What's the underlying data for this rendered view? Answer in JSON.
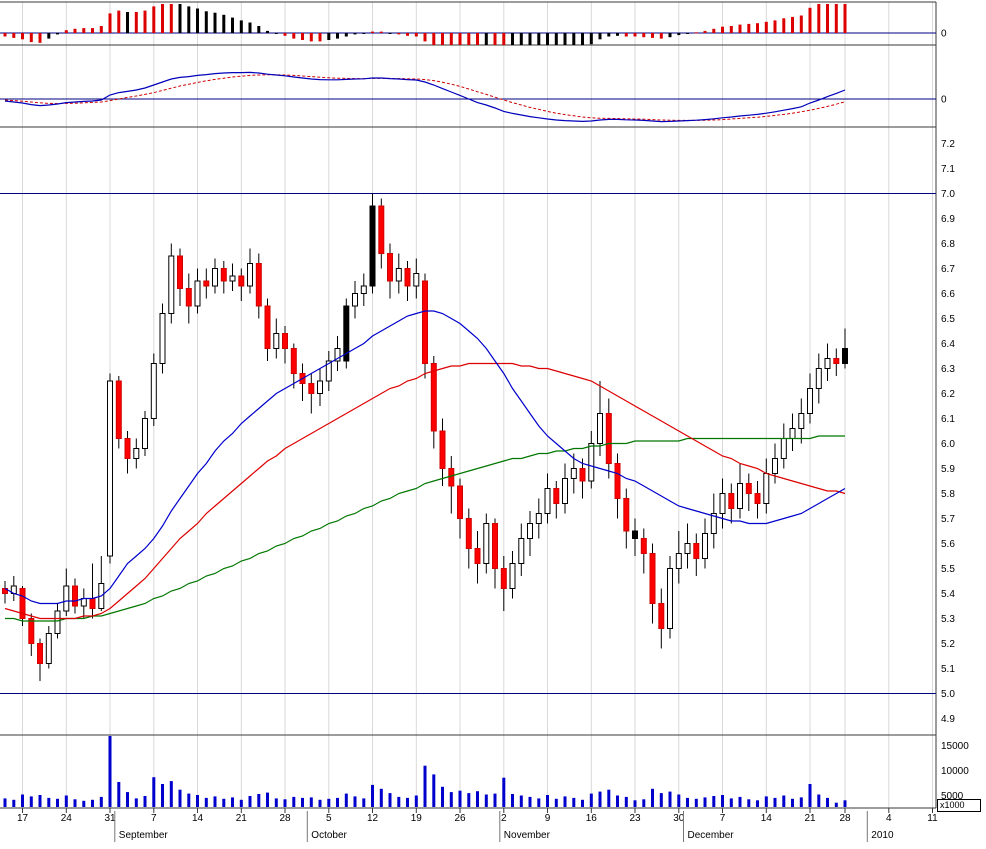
{
  "right_axis": {
    "indicator_zero_labels": [
      "0",
      "0"
    ],
    "price_labels": [
      "7.2",
      "7.1",
      "7.0",
      "6.9",
      "6.8",
      "6.7",
      "6.6",
      "6.5",
      "6.4",
      "6.3",
      "6.2",
      "6.1",
      "6.0",
      "5.9",
      "5.8",
      "5.7",
      "5.6",
      "5.5",
      "5.4",
      "5.3",
      "5.2",
      "5.1",
      "5.0",
      "4.9"
    ],
    "volume_labels": [
      "15000",
      "10000",
      "5000"
    ],
    "volume_unit": "x1000"
  },
  "x_axis": {
    "week_tick_labels": [
      "17",
      "24",
      "31",
      "7",
      "14",
      "21",
      "28",
      "5",
      "12",
      "19",
      "26",
      "2",
      "9",
      "16",
      "23",
      "30",
      "7",
      "14",
      "21",
      "28",
      "4",
      "11"
    ],
    "week_tick_days": [
      2,
      7,
      12,
      17,
      22,
      27,
      32,
      37,
      42,
      47,
      52,
      57,
      62,
      67,
      72,
      77,
      82,
      87,
      92,
      96,
      101,
      106
    ],
    "month_labels": [
      "September",
      "October",
      "November",
      "December",
      "2010"
    ],
    "month_days": [
      13,
      35,
      57,
      78,
      99
    ]
  },
  "chart_data": {
    "type": "candlestick",
    "description": "Daily OHLC price chart Aug-Dec 2009 with 3 moving averages, MACD panel, MACD histogram panel and volume panel",
    "price_axis_range": [
      4.85,
      7.25
    ],
    "hlines": [
      7.0,
      5.0
    ],
    "volume_axis_ticks": [
      5000,
      10000,
      15000
    ],
    "open": [
      5.42,
      5.4,
      5.42,
      5.3,
      5.2,
      5.12,
      5.24,
      5.33,
      5.43,
      5.35,
      5.38,
      5.34,
      5.55,
      6.25,
      6.02,
      5.94,
      5.98,
      6.1,
      6.32,
      6.52,
      6.75,
      6.62,
      6.55,
      6.65,
      6.63,
      6.7,
      6.65,
      6.67,
      6.63,
      6.72,
      6.55,
      6.38,
      6.44,
      6.38,
      6.28,
      6.24,
      6.2,
      6.25,
      6.33,
      6.33,
      6.55,
      6.6,
      6.63,
      6.95,
      6.76,
      6.65,
      6.7,
      6.63,
      6.65,
      6.32,
      6.05,
      5.9,
      5.83,
      5.7,
      5.58,
      5.52,
      5.68,
      5.5,
      5.42,
      5.52,
      5.62,
      5.68,
      5.72,
      5.82,
      5.76,
      5.86,
      5.9,
      5.85,
      6.0,
      6.12,
      5.92,
      5.78,
      5.65,
      5.62,
      5.56,
      5.36,
      5.26,
      5.5,
      5.56,
      5.6,
      5.54,
      5.64,
      5.72,
      5.8,
      5.74,
      5.84,
      5.8,
      5.76,
      5.88,
      5.94,
      6.02,
      6.06,
      6.12,
      6.22,
      6.3,
      6.34,
      6.32
    ],
    "close": [
      5.4,
      5.43,
      5.3,
      5.2,
      5.12,
      5.24,
      5.33,
      5.43,
      5.35,
      5.38,
      5.34,
      5.44,
      6.25,
      6.02,
      5.94,
      5.98,
      6.1,
      6.32,
      6.52,
      6.75,
      6.62,
      6.55,
      6.65,
      6.63,
      6.7,
      6.65,
      6.67,
      6.63,
      6.72,
      6.55,
      6.38,
      6.44,
      6.38,
      6.28,
      6.24,
      6.2,
      6.25,
      6.33,
      6.38,
      6.55,
      6.6,
      6.63,
      6.95,
      6.76,
      6.65,
      6.7,
      6.63,
      6.68,
      6.32,
      6.05,
      5.9,
      5.83,
      5.7,
      5.58,
      5.52,
      5.68,
      5.5,
      5.42,
      5.52,
      5.62,
      5.68,
      5.72,
      5.82,
      5.76,
      5.86,
      5.9,
      5.85,
      6.0,
      6.12,
      5.92,
      5.78,
      5.65,
      5.62,
      5.56,
      5.36,
      5.26,
      5.5,
      5.56,
      5.6,
      5.54,
      5.64,
      5.72,
      5.8,
      5.74,
      5.84,
      5.8,
      5.76,
      5.88,
      5.94,
      6.02,
      6.06,
      6.12,
      6.22,
      6.3,
      6.34,
      6.32,
      6.38
    ],
    "high": [
      5.45,
      5.47,
      5.43,
      5.32,
      5.22,
      5.27,
      5.36,
      5.5,
      5.46,
      5.42,
      5.52,
      5.55,
      6.28,
      6.27,
      6.05,
      6.02,
      6.13,
      6.36,
      6.56,
      6.8,
      6.78,
      6.68,
      6.7,
      6.7,
      6.74,
      6.73,
      6.72,
      6.7,
      6.78,
      6.76,
      6.58,
      6.5,
      6.47,
      6.4,
      6.32,
      6.28,
      6.3,
      6.37,
      6.43,
      6.58,
      6.65,
      6.68,
      7.0,
      6.98,
      6.8,
      6.76,
      6.73,
      6.74,
      6.68,
      6.35,
      6.1,
      5.95,
      5.86,
      5.74,
      5.65,
      5.72,
      5.7,
      5.55,
      5.57,
      5.68,
      5.73,
      5.78,
      5.88,
      5.85,
      5.92,
      5.96,
      5.94,
      6.05,
      6.25,
      6.18,
      5.96,
      5.82,
      5.7,
      5.66,
      5.6,
      5.42,
      5.55,
      5.65,
      5.68,
      5.64,
      5.7,
      5.8,
      5.86,
      5.84,
      5.92,
      5.88,
      5.85,
      5.94,
      6.0,
      6.08,
      6.12,
      6.18,
      6.28,
      6.36,
      6.4,
      6.38,
      6.46
    ],
    "low": [
      5.36,
      5.37,
      5.27,
      5.15,
      5.05,
      5.1,
      5.22,
      5.31,
      5.32,
      5.3,
      5.3,
      5.33,
      5.52,
      5.98,
      5.88,
      5.9,
      5.95,
      6.07,
      6.28,
      6.48,
      6.55,
      6.48,
      6.52,
      6.58,
      6.6,
      6.6,
      6.61,
      6.57,
      6.6,
      6.5,
      6.33,
      6.34,
      6.32,
      6.22,
      6.17,
      6.12,
      6.15,
      6.21,
      6.29,
      6.3,
      6.5,
      6.55,
      6.6,
      6.7,
      6.58,
      6.6,
      6.57,
      6.58,
      6.26,
      5.98,
      5.83,
      5.72,
      5.62,
      5.5,
      5.44,
      5.48,
      5.42,
      5.33,
      5.38,
      5.47,
      5.55,
      5.62,
      5.68,
      5.7,
      5.72,
      5.8,
      5.78,
      5.82,
      5.95,
      5.86,
      5.7,
      5.58,
      5.55,
      5.48,
      5.28,
      5.18,
      5.22,
      5.44,
      5.5,
      5.47,
      5.5,
      5.58,
      5.66,
      5.68,
      5.7,
      5.73,
      5.7,
      5.72,
      5.84,
      5.9,
      5.97,
      6.0,
      6.08,
      6.16,
      6.25,
      6.27,
      6.3
    ],
    "candle_color": [
      "r",
      "w",
      "r",
      "r",
      "r",
      "w",
      "w",
      "w",
      "r",
      "w",
      "r",
      "w",
      "w",
      "r",
      "r",
      "w",
      "w",
      "w",
      "w",
      "w",
      "r",
      "r",
      "w",
      "r",
      "w",
      "r",
      "w",
      "r",
      "w",
      "r",
      "r",
      "w",
      "r",
      "r",
      "r",
      "r",
      "w",
      "w",
      "w",
      "k",
      "w",
      "w",
      "k",
      "r",
      "r",
      "w",
      "r",
      "w",
      "r",
      "r",
      "r",
      "r",
      "r",
      "r",
      "r",
      "w",
      "r",
      "r",
      "w",
      "w",
      "w",
      "w",
      "w",
      "r",
      "w",
      "w",
      "r",
      "w",
      "w",
      "r",
      "r",
      "r",
      "k",
      "r",
      "r",
      "r",
      "w",
      "w",
      "w",
      "r",
      "w",
      "w",
      "w",
      "r",
      "w",
      "r",
      "r",
      "w",
      "w",
      "w",
      "w",
      "w",
      "w",
      "w",
      "w",
      "r",
      "k"
    ],
    "volume": [
      1800,
      1500,
      2600,
      2200,
      2500,
      1900,
      1700,
      2400,
      1600,
      1300,
      1500,
      2100,
      15500,
      5200,
      3100,
      1800,
      2300,
      6200,
      4800,
      5400,
      3600,
      2800,
      2500,
      1900,
      2200,
      1700,
      2000,
      1500,
      2300,
      2700,
      3000,
      1800,
      1600,
      2100,
      1900,
      2000,
      1500,
      1700,
      1900,
      2800,
      2200,
      1800,
      4600,
      3800,
      2900,
      2100,
      1900,
      2400,
      8600,
      6800,
      4200,
      3100,
      3400,
      2900,
      3300,
      2600,
      2800,
      6100,
      2700,
      2400,
      2100,
      1800,
      2500,
      1700,
      2200,
      1900,
      1500,
      2800,
      3200,
      3600,
      2400,
      2100,
      1400,
      1600,
      3800,
      2900,
      3200,
      2600,
      1900,
      1700,
      2000,
      2300,
      2500,
      1800,
      2100,
      1600,
      1400,
      2200,
      1900,
      2400,
      1700,
      2000,
      4800,
      2600,
      1900,
      900,
      1400
    ],
    "ma_fast_blue": [
      5.42,
      5.4,
      5.39,
      5.37,
      5.36,
      5.36,
      5.36,
      5.37,
      5.37,
      5.38,
      5.38,
      5.39,
      5.42,
      5.47,
      5.52,
      5.55,
      5.58,
      5.62,
      5.67,
      5.73,
      5.78,
      5.83,
      5.88,
      5.92,
      5.97,
      6.01,
      6.04,
      6.08,
      6.11,
      6.14,
      6.17,
      6.2,
      6.22,
      6.24,
      6.26,
      6.28,
      6.3,
      6.32,
      6.34,
      6.36,
      6.38,
      6.4,
      6.43,
      6.45,
      6.47,
      6.49,
      6.51,
      6.52,
      6.53,
      6.53,
      6.52,
      6.5,
      6.48,
      6.45,
      6.42,
      6.38,
      6.33,
      6.28,
      6.22,
      6.17,
      6.12,
      6.07,
      6.03,
      6.0,
      5.97,
      5.94,
      5.92,
      5.91,
      5.9,
      5.89,
      5.88,
      5.86,
      5.85,
      5.83,
      5.81,
      5.79,
      5.77,
      5.75,
      5.74,
      5.73,
      5.72,
      5.71,
      5.7,
      5.69,
      5.69,
      5.68,
      5.68,
      5.68,
      5.69,
      5.7,
      5.71,
      5.72,
      5.74,
      5.76,
      5.78,
      5.8,
      5.82
    ],
    "ma_mid_red": [
      5.34,
      5.33,
      5.32,
      5.31,
      5.3,
      5.3,
      5.3,
      5.3,
      5.3,
      5.31,
      5.31,
      5.32,
      5.34,
      5.37,
      5.4,
      5.43,
      5.46,
      5.5,
      5.54,
      5.58,
      5.62,
      5.65,
      5.68,
      5.72,
      5.75,
      5.78,
      5.81,
      5.84,
      5.87,
      5.9,
      5.93,
      5.95,
      5.98,
      6.0,
      6.02,
      6.04,
      6.06,
      6.08,
      6.1,
      6.12,
      6.14,
      6.16,
      6.18,
      6.2,
      6.22,
      6.23,
      6.25,
      6.26,
      6.28,
      6.29,
      6.3,
      6.31,
      6.31,
      6.32,
      6.32,
      6.32,
      6.32,
      6.32,
      6.32,
      6.31,
      6.31,
      6.3,
      6.3,
      6.29,
      6.28,
      6.27,
      6.26,
      6.25,
      6.23,
      6.21,
      6.19,
      6.17,
      6.15,
      6.13,
      6.11,
      6.09,
      6.07,
      6.05,
      6.03,
      6.01,
      5.99,
      5.97,
      5.95,
      5.94,
      5.92,
      5.91,
      5.9,
      5.88,
      5.87,
      5.86,
      5.85,
      5.84,
      5.83,
      5.82,
      5.81,
      5.81,
      5.8
    ],
    "ma_slow_green": [
      5.3,
      5.3,
      5.29,
      5.29,
      5.29,
      5.29,
      5.29,
      5.3,
      5.3,
      5.3,
      5.31,
      5.31,
      5.32,
      5.33,
      5.34,
      5.35,
      5.36,
      5.38,
      5.39,
      5.41,
      5.42,
      5.44,
      5.45,
      5.47,
      5.48,
      5.5,
      5.51,
      5.53,
      5.54,
      5.56,
      5.57,
      5.59,
      5.6,
      5.62,
      5.63,
      5.65,
      5.66,
      5.68,
      5.69,
      5.71,
      5.72,
      5.74,
      5.75,
      5.77,
      5.78,
      5.8,
      5.81,
      5.82,
      5.84,
      5.85,
      5.86,
      5.87,
      5.88,
      5.89,
      5.9,
      5.91,
      5.92,
      5.93,
      5.94,
      5.94,
      5.95,
      5.96,
      5.96,
      5.97,
      5.97,
      5.98,
      5.98,
      5.99,
      5.99,
      6.0,
      6.0,
      6.0,
      6.01,
      6.01,
      6.01,
      6.01,
      6.01,
      6.01,
      6.02,
      6.02,
      6.02,
      6.02,
      6.02,
      6.02,
      6.02,
      6.02,
      6.02,
      6.02,
      6.02,
      6.02,
      6.02,
      6.02,
      6.02,
      6.03,
      6.03,
      6.03,
      6.03
    ],
    "macd": [
      -0.01,
      -0.015,
      -0.02,
      -0.028,
      -0.033,
      -0.03,
      -0.025,
      -0.018,
      -0.015,
      -0.012,
      -0.01,
      -0.005,
      0.02,
      0.032,
      0.038,
      0.045,
      0.055,
      0.07,
      0.085,
      0.1,
      0.108,
      0.112,
      0.118,
      0.122,
      0.127,
      0.13,
      0.132,
      0.132,
      0.133,
      0.13,
      0.124,
      0.12,
      0.116,
      0.11,
      0.105,
      0.1,
      0.097,
      0.096,
      0.096,
      0.098,
      0.1,
      0.101,
      0.105,
      0.105,
      0.102,
      0.1,
      0.097,
      0.095,
      0.085,
      0.07,
      0.052,
      0.035,
      0.018,
      0.0,
      -0.018,
      -0.03,
      -0.045,
      -0.062,
      -0.072,
      -0.08,
      -0.088,
      -0.094,
      -0.1,
      -0.105,
      -0.108,
      -0.11,
      -0.112,
      -0.11,
      -0.105,
      -0.102,
      -0.102,
      -0.104,
      -0.105,
      -0.107,
      -0.11,
      -0.113,
      -0.112,
      -0.11,
      -0.108,
      -0.106,
      -0.103,
      -0.099,
      -0.094,
      -0.09,
      -0.085,
      -0.081,
      -0.077,
      -0.071,
      -0.064,
      -0.056,
      -0.048,
      -0.039,
      -0.02,
      -0.005,
      0.012,
      0.028,
      0.045
    ],
    "macd_signal": [
      -0.005,
      -0.008,
      -0.011,
      -0.015,
      -0.019,
      -0.022,
      -0.023,
      -0.022,
      -0.021,
      -0.019,
      -0.017,
      -0.015,
      -0.008,
      0.0,
      0.008,
      0.015,
      0.023,
      0.032,
      0.043,
      0.054,
      0.065,
      0.074,
      0.083,
      0.091,
      0.098,
      0.104,
      0.11,
      0.114,
      0.118,
      0.12,
      0.121,
      0.121,
      0.12,
      0.118,
      0.115,
      0.112,
      0.109,
      0.106,
      0.104,
      0.103,
      0.102,
      0.102,
      0.103,
      0.103,
      0.103,
      0.102,
      0.101,
      0.1,
      0.097,
      0.092,
      0.084,
      0.074,
      0.063,
      0.05,
      0.036,
      0.023,
      0.009,
      -0.005,
      -0.018,
      -0.03,
      -0.042,
      -0.052,
      -0.062,
      -0.071,
      -0.078,
      -0.084,
      -0.09,
      -0.094,
      -0.096,
      -0.097,
      -0.098,
      -0.099,
      -0.1,
      -0.101,
      -0.103,
      -0.105,
      -0.106,
      -0.107,
      -0.107,
      -0.107,
      -0.106,
      -0.105,
      -0.103,
      -0.1,
      -0.097,
      -0.094,
      -0.091,
      -0.087,
      -0.082,
      -0.077,
      -0.071,
      -0.064,
      -0.056,
      -0.047,
      -0.037,
      -0.026,
      -0.014
    ]
  },
  "colors": {
    "grid": "#d9d9d9",
    "panel_border": "#3a3a3a",
    "navy_line": "#000080",
    "candle_up_fill": "#ffffff",
    "candle_down_fill": "#ff0000",
    "candle_black_fill": "#000000",
    "volume_bar": "#0000cc",
    "macd_line": "#0000bb",
    "macd_signal_line": "#cc0000",
    "ma_fast": "#0000cc",
    "ma_mid": "#dd0000",
    "ma_slow": "#007700",
    "hist_red": "#dd0000",
    "hist_black": "#000000"
  }
}
